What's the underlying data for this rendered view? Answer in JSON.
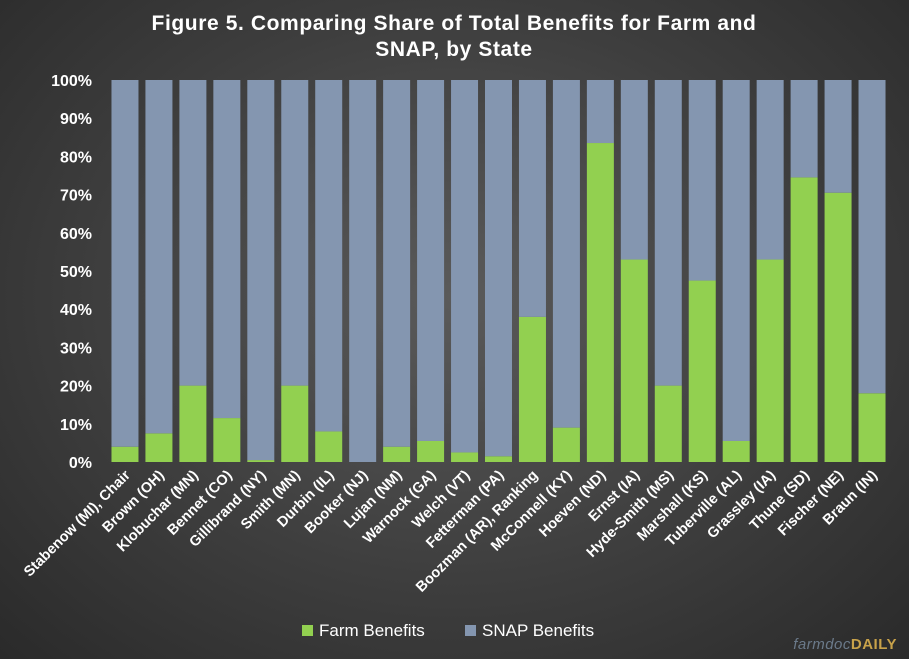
{
  "chart_data": {
    "type": "bar",
    "stacked": true,
    "title": "Figure 5. Comparing Share of Total Benefits for Farm and SNAP, by State",
    "title_lines": [
      "Figure 5. Comparing Share of Total Benefits for Farm and",
      "SNAP, by State"
    ],
    "xlabel": "",
    "ylabel": "",
    "ylim": [
      0,
      100
    ],
    "yticks": [
      "0%",
      "10%",
      "20%",
      "30%",
      "40%",
      "50%",
      "60%",
      "70%",
      "80%",
      "90%",
      "100%"
    ],
    "grid": false,
    "legend_position": "bottom",
    "categories": [
      "Stabenow (MI), Chair",
      "Brown (OH)",
      "Klobuchar (MN)",
      "Bennet (CO)",
      "Gillibrand (NY)",
      "Smith (MN)",
      "Durbin (IL)",
      "Booker (NJ)",
      "Lujan (NM)",
      "Warnock (GA)",
      "Welch (VT)",
      "Fetterman (PA)",
      "Boozman (AR), Ranking",
      "McConnell (KY)",
      "Hoeven (ND)",
      "Ernst (IA)",
      "Hyde-Smith (MS)",
      "Marshall (KS)",
      "Tuberville (AL)",
      "Grassley (IA)",
      "Thune (SD)",
      "Fischer (NE)",
      "Braun (IN)"
    ],
    "series": [
      {
        "name": "Farm Benefits",
        "color": "#92d050",
        "values": [
          4,
          7.5,
          20,
          11.5,
          0.5,
          20,
          8,
          0,
          4,
          5.5,
          2.5,
          1.5,
          38,
          9,
          83.5,
          53,
          20,
          47.5,
          5.5,
          53,
          74.5,
          70.5,
          18
        ]
      },
      {
        "name": "SNAP Benefits",
        "color": "#8496b0",
        "values": [
          96,
          92.5,
          80,
          88.5,
          99.5,
          80,
          92,
          100,
          96,
          94.5,
          97.5,
          98.5,
          62,
          91,
          16.5,
          47,
          80,
          52.5,
          94.5,
          47,
          25.5,
          29.5,
          82
        ]
      }
    ]
  },
  "brand": {
    "part1": "farmdoc",
    "part2": "DAILY"
  }
}
